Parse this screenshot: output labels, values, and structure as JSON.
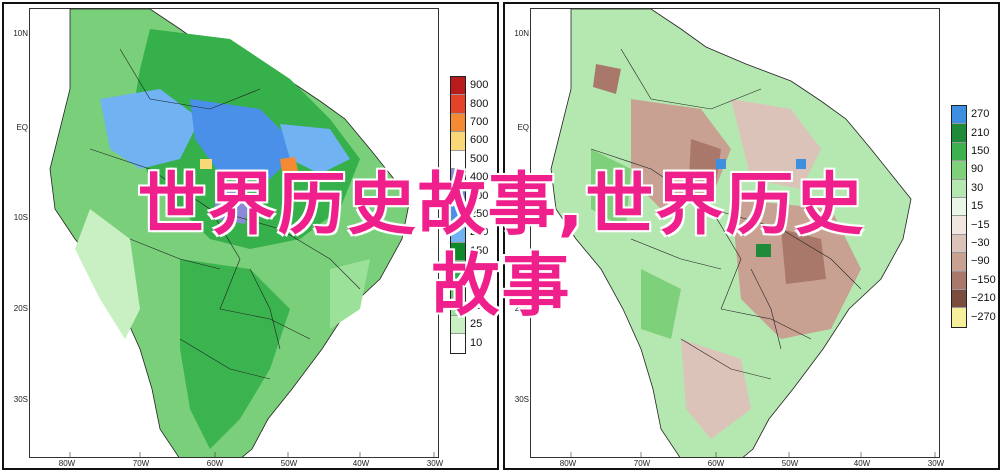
{
  "panels": [
    {
      "id": "precipitation",
      "lat_labels": [
        "10N",
        "EQ",
        "10S",
        "20S",
        "30S"
      ],
      "lon_labels": [
        "80W",
        "70W",
        "60W",
        "50W",
        "40W",
        "30W"
      ],
      "legend": {
        "labels": [
          "900",
          "800",
          "700",
          "600",
          "500",
          "400",
          "300",
          "250",
          "200",
          "150",
          "100",
          "75",
          "50",
          "25",
          "10"
        ],
        "colors": [
          "#b81c1c",
          "#e4432a",
          "#f58a35",
          "#f9d878",
          "#ffffff",
          "#8a8ad6",
          "#6a7fe0",
          "#4a8fe8",
          "#70b2f2",
          "#0f8a2a",
          "#2eab45",
          "#5fc964",
          "#9ce19a",
          "#c8f0c2",
          "#ffffff"
        ]
      }
    },
    {
      "id": "anomaly",
      "lat_labels": [
        "10N",
        "EQ",
        "10S",
        "20S",
        "30S"
      ],
      "lon_labels": [
        "80W",
        "70W",
        "60W",
        "50W",
        "40W",
        "30W"
      ],
      "legend": {
        "labels": [
          "270",
          "210",
          "150",
          "90",
          "30",
          "15",
          "−15",
          "−30",
          "−90",
          "−150",
          "−210",
          "−270"
        ],
        "colors": [
          "#3f8fe0",
          "#1e8a3a",
          "#3fb04e",
          "#7ed07a",
          "#b5e7b0",
          "#e9f7e6",
          "#f1e6e0",
          "#dcc3b9",
          "#c8a193",
          "#a9786a",
          "#7a4d3e",
          "#f6ef9b"
        ]
      }
    }
  ],
  "watermark": {
    "line1": "世界历史故事,世界历史",
    "line2": "故事"
  }
}
